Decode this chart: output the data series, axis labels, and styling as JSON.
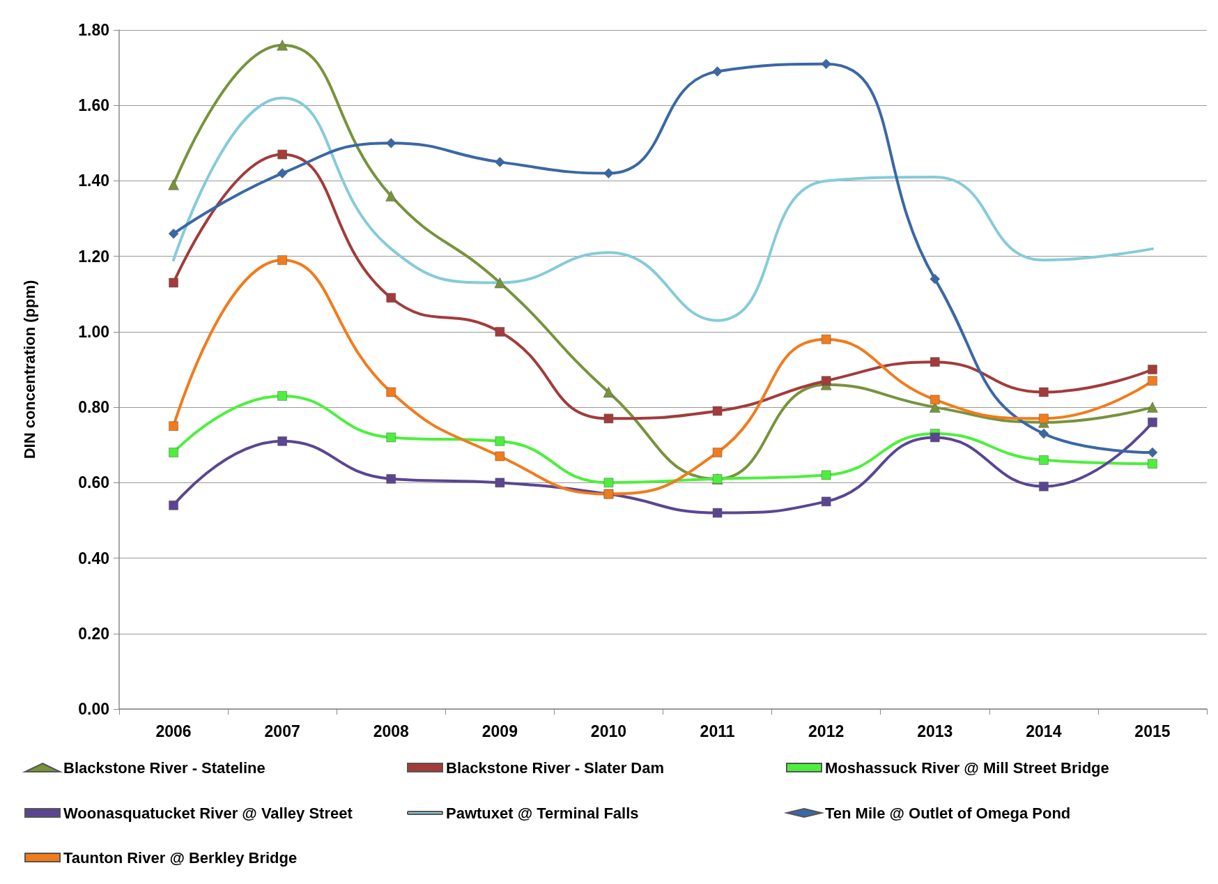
{
  "chart_data": {
    "type": "line",
    "ylabel": "DIN concentration (ppm)",
    "categories": [
      "2006",
      "2007",
      "2008",
      "2009",
      "2010",
      "2011",
      "2012",
      "2013",
      "2014",
      "2015"
    ],
    "ylim": [
      0,
      1.8
    ],
    "yticks": [
      {
        "value": 0,
        "label": "0.00"
      },
      {
        "value": 0.2,
        "label": "0.20"
      },
      {
        "value": 0.4,
        "label": "0.40"
      },
      {
        "value": 0.6,
        "label": "0.60"
      },
      {
        "value": 0.8,
        "label": "0.80"
      },
      {
        "value": 1,
        "label": "1.00"
      },
      {
        "value": 1.2,
        "label": "1.20"
      },
      {
        "value": 1.4,
        "label": "1.40"
      },
      {
        "value": 1.6,
        "label": "1.60"
      },
      {
        "value": 1.8,
        "label": "1.80"
      }
    ],
    "grid": "y",
    "legend": "bottom",
    "series": [
      {
        "name": "Blackstone River - Stateline",
        "color": "#77933c",
        "marker": "triangle",
        "values": [
          1.39,
          1.76,
          1.36,
          1.13,
          0.84,
          0.61,
          0.86,
          0.8,
          0.76,
          0.8
        ]
      },
      {
        "name": "Blackstone River - Slater Dam",
        "color": "#a33b3b",
        "marker": "square",
        "values": [
          1.13,
          1.47,
          1.09,
          1.0,
          0.77,
          0.79,
          0.87,
          0.92,
          0.84,
          0.9
        ]
      },
      {
        "name": "Moshassuck River @ Mill Street Bridge",
        "color": "#4cf03c",
        "marker": "square",
        "values": [
          0.68,
          0.83,
          0.72,
          0.71,
          0.6,
          0.61,
          0.62,
          0.73,
          0.66,
          0.65
        ]
      },
      {
        "name": "Woonasquatucket River @ Valley Street",
        "color": "#5b4591",
        "marker": "square",
        "values": [
          0.54,
          0.71,
          0.61,
          0.6,
          0.57,
          0.52,
          0.55,
          0.72,
          0.59,
          0.76
        ]
      },
      {
        "name": "Pawtuxet @ Terminal Falls",
        "color": "#86cbd9",
        "marker": "none",
        "values": [
          1.19,
          1.62,
          1.22,
          1.13,
          1.21,
          1.03,
          1.4,
          1.41,
          1.19,
          1.22
        ]
      },
      {
        "name": "Ten Mile @ Outlet of Omega Pond",
        "color": "#3a67a6",
        "marker": "diamond",
        "values": [
          1.26,
          1.42,
          1.5,
          1.45,
          1.42,
          1.69,
          1.71,
          1.14,
          0.73,
          0.68
        ]
      },
      {
        "name": "Taunton River @ Berkley Bridge",
        "color": "#f27b1b",
        "marker": "square",
        "values": [
          0.75,
          1.19,
          0.84,
          0.67,
          0.57,
          0.68,
          0.98,
          0.82,
          0.77,
          0.87
        ]
      }
    ]
  }
}
